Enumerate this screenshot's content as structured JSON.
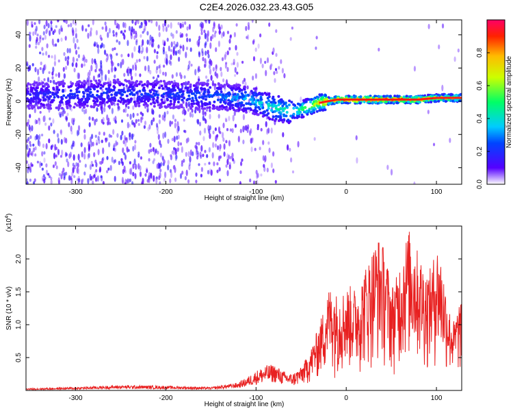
{
  "title": "C2E4.2026.032.23.43.G05",
  "colorbar": {
    "label": "Normalized spectral amplitude",
    "ticks": [
      "0.0",
      "0.2",
      "0.4",
      "0.6",
      "0.8"
    ],
    "tick_values": [
      0,
      0.2,
      0.4,
      0.6,
      0.8
    ],
    "range": [
      0,
      1
    ]
  },
  "chart_data": [
    {
      "type": "heatmap",
      "title": "",
      "xlabel": "Height of straight line (km)",
      "ylabel": "Frequency (Hz)",
      "xlim": [
        -355,
        128
      ],
      "ylim": [
        -50,
        49
      ],
      "xticks": [
        -300,
        -200,
        -100,
        0,
        100
      ],
      "xtick_labels": [
        "-300",
        "-200",
        "-100",
        "0",
        "100"
      ],
      "yticks": [
        -40,
        -20,
        0,
        20,
        40
      ],
      "ytick_labels": [
        "-40",
        "-20",
        "0",
        "20",
        "40"
      ],
      "ridge": {
        "description_x": [
          -355,
          -300,
          -250,
          -200,
          -150,
          -120,
          -100,
          -80,
          -60,
          -50,
          -40,
          -30,
          -20,
          -10,
          0,
          20,
          40,
          60,
          80,
          100,
          128
        ],
        "frequency_hz": [
          3,
          4,
          5,
          4,
          3,
          2,
          0,
          -4,
          -6,
          -5,
          -3,
          -1,
          0,
          1,
          1,
          1,
          1,
          1,
          1,
          2,
          2
        ],
        "amplitude": [
          0.2,
          0.25,
          0.25,
          0.25,
          0.3,
          0.35,
          0.4,
          0.45,
          0.5,
          0.6,
          0.7,
          0.8,
          0.9,
          0.95,
          1.0,
          1.0,
          1.0,
          0.95,
          0.9,
          0.85,
          0.8
        ]
      },
      "colormap": "rainbow"
    },
    {
      "type": "line",
      "title": "",
      "xlabel": "Height of straight line (km)",
      "ylabel": "SNR (10 * v/v)",
      "yscale_label": "(x10",
      "yscale_exp": "4",
      "yscale_close": ")",
      "xlim": [
        -355,
        128
      ],
      "ylim": [
        0,
        2.5
      ],
      "xticks": [
        -300,
        -200,
        -100,
        0,
        100
      ],
      "xtick_labels": [
        "-300",
        "-200",
        "-100",
        "0",
        "100"
      ],
      "yticks": [
        0.5,
        1.0,
        1.5,
        2.0
      ],
      "ytick_labels": [
        "0.5",
        "1.0",
        "1.5",
        "2.0"
      ],
      "color": "#e82020",
      "envelope": {
        "x": [
          -355,
          -300,
          -250,
          -200,
          -150,
          -120,
          -110,
          -100,
          -90,
          -80,
          -70,
          -60,
          -50,
          -40,
          -35,
          -30,
          -25,
          -20,
          -15,
          -10,
          -5,
          0,
          5,
          10,
          15,
          20,
          25,
          30,
          35,
          40,
          45,
          50,
          55,
          60,
          65,
          70,
          75,
          80,
          85,
          90,
          95,
          100,
          105,
          110,
          115,
          120,
          125,
          128
        ],
        "y": [
          0.03,
          0.05,
          0.08,
          0.07,
          0.05,
          0.12,
          0.2,
          0.3,
          0.38,
          0.4,
          0.3,
          0.25,
          0.35,
          0.6,
          0.8,
          1.0,
          1.25,
          1.55,
          1.6,
          1.45,
          1.5,
          1.55,
          1.6,
          1.55,
          1.6,
          1.85,
          2.0,
          2.2,
          2.35,
          2.25,
          2.0,
          1.6,
          1.7,
          2.0,
          2.3,
          2.45,
          2.3,
          2.1,
          1.95,
          1.8,
          1.9,
          2.25,
          2.05,
          1.6,
          1.2,
          1.05,
          1.35,
          1.3
        ]
      }
    }
  ]
}
